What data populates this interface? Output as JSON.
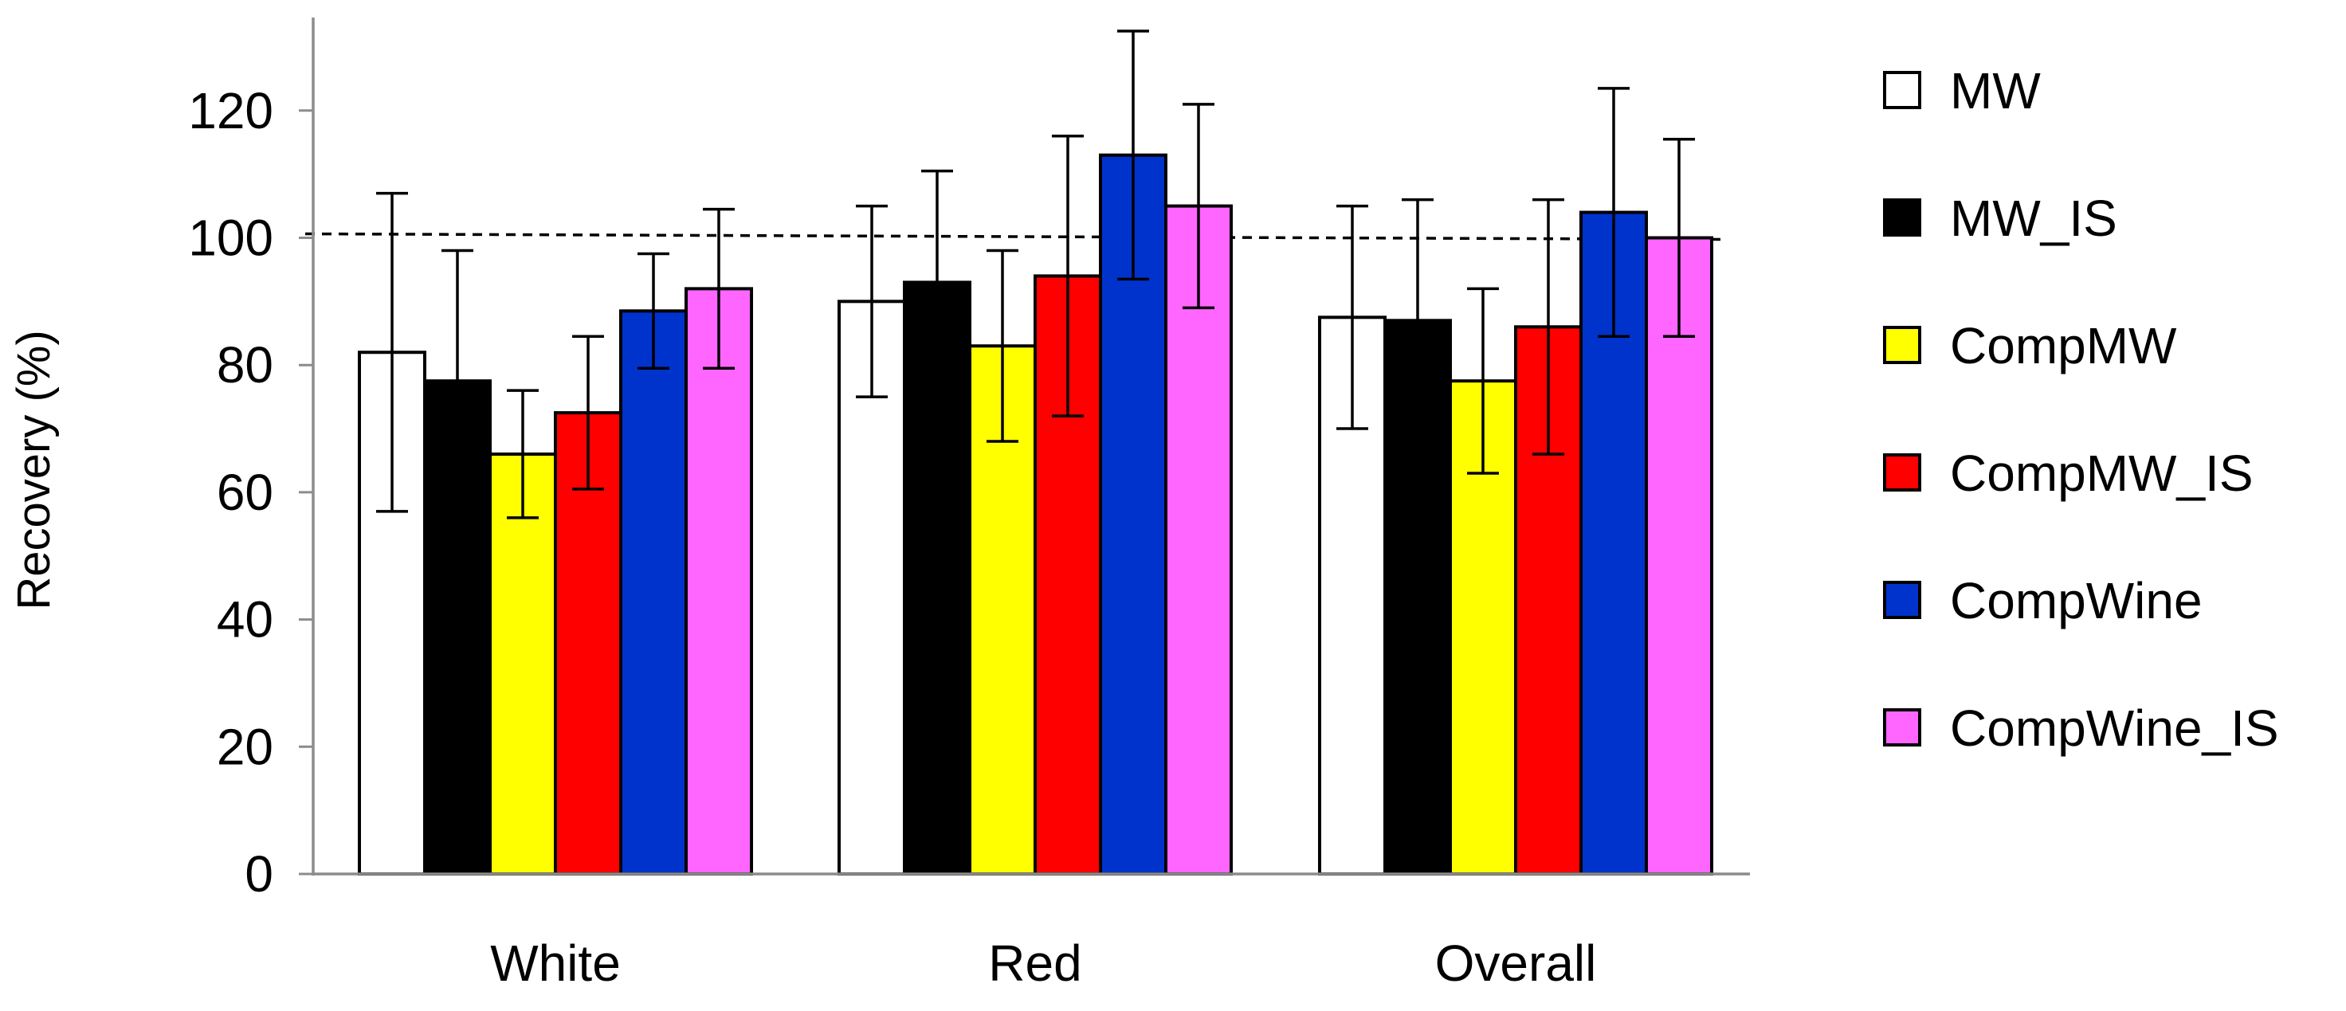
{
  "chart_data": {
    "type": "bar",
    "title": "",
    "xlabel": "",
    "ylabel": "Recovery (%)",
    "ylim": [
      0,
      135
    ],
    "yticks": [
      0,
      20,
      40,
      60,
      80,
      100,
      120
    ],
    "reference_line": 100,
    "categories": [
      "White",
      "Red",
      "Overall"
    ],
    "series": [
      {
        "name": "MW",
        "color": "#ffffff",
        "values": [
          82,
          90,
          87.5
        ],
        "errors": [
          25,
          15,
          17.5
        ]
      },
      {
        "name": "MW_IS",
        "color": "#000000",
        "values": [
          77.5,
          93,
          87
        ],
        "errors": [
          20.5,
          17.5,
          19
        ]
      },
      {
        "name": "CompMW",
        "color": "#ffff00",
        "values": [
          66,
          83,
          77.5
        ],
        "errors": [
          10,
          15,
          14.5
        ]
      },
      {
        "name": "CompMW_IS",
        "color": "#ff0000",
        "values": [
          72.5,
          94,
          86
        ],
        "errors": [
          12,
          22,
          20
        ]
      },
      {
        "name": "CompWine",
        "color": "#0033cc",
        "values": [
          88.5,
          113,
          104
        ],
        "errors": [
          9,
          19.5,
          19.5
        ]
      },
      {
        "name": "CompWine_IS",
        "color": "#ff66ff",
        "values": [
          92,
          105,
          100
        ],
        "errors": [
          12.5,
          16,
          15.5
        ]
      }
    ],
    "legend_position": "right"
  }
}
